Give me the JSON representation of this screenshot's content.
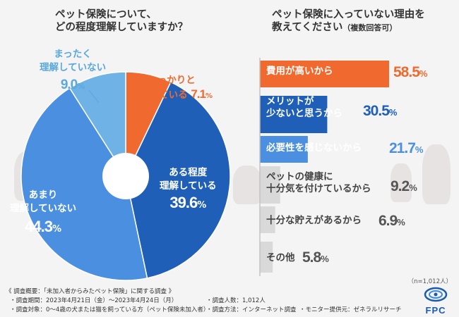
{
  "colors": {
    "orange": "#f06a2f",
    "dark_blue": "#1f5fb7",
    "mid_blue": "#4b8fe0",
    "light_blue": "#6fb3e6",
    "gray_bar": "#d9d9d9",
    "gray_bar_dark": "#c3c3c3",
    "logo_blue": "#1a5bb0"
  },
  "left_title": {
    "line1": "ペット保険について、",
    "line2": "どの程度理解していますか？"
  },
  "right_title": {
    "line1": "ペット保険に入っていない理由を",
    "line2": "教えてください",
    "note": "（複数回答可）"
  },
  "pie_labels": {
    "firm": {
      "line1": "しっかりと",
      "line2": "理解している",
      "pct": "7.1",
      "unit": "%"
    },
    "some": {
      "line1": "ある程度",
      "line2": "理解している",
      "pct": "39.6",
      "unit": "%"
    },
    "little": {
      "line1": "あまり",
      "line2": "理解していない",
      "pct": "44.3",
      "unit": "%"
    },
    "none": {
      "line1": "まったく",
      "line2": "理解していない",
      "pct": "9.0",
      "unit": "%"
    }
  },
  "bar_labels": [
    {
      "line1": "費用が高いから",
      "line2": "",
      "pct": "58.5",
      "unit": "%"
    },
    {
      "line1": "メリットが",
      "line2": "少ないと思うから",
      "pct": "30.5",
      "unit": "%"
    },
    {
      "line1": "必要性を感じないから",
      "line2": "",
      "pct": "21.7",
      "unit": "%"
    },
    {
      "line1": "ペットの健康に",
      "line2": "十分気を付けているから",
      "pct": "9.2",
      "unit": "%"
    },
    {
      "line1": "十分な貯えがあるから",
      "line2": "",
      "pct": "6.9",
      "unit": "%"
    },
    {
      "line1": "その他",
      "line2": "",
      "pct": "5.8",
      "unit": "%"
    }
  ],
  "n_label": "（n=1,012人）",
  "footer": {
    "line1": "《 調査概要：「未加入者からみたペット保険」に関する調査 》",
    "period": "・調査期間：2023年4月21日（金）～2023年4月24日（月）",
    "count": "・調査人数：1,012人",
    "target": "・調査対象：0～4歳の犬または猫を飼っている方（ペット保険未加入者）",
    "method": "・調査方法：インターネット調査",
    "provider": "・モニター提供元：ゼネラルリサーチ"
  },
  "logo_text": "FPC",
  "chart_data": [
    {
      "type": "pie",
      "title": "ペット保険について、どの程度理解していますか？",
      "categories": [
        "しっかりと理解している",
        "ある程度理解している",
        "あまり理解していない",
        "まったく理解していない"
      ],
      "values": [
        7.1,
        39.6,
        44.3,
        9.0
      ],
      "unit": "%"
    },
    {
      "type": "bar",
      "orientation": "horizontal",
      "title": "ペット保険に入っていない理由を教えてください（複数回答可）",
      "categories": [
        "費用が高いから",
        "メリットが少ないと思うから",
        "必要性を感じないから",
        "ペットの健康に十分気を付けているから",
        "十分な貯えがあるから",
        "その他"
      ],
      "values": [
        58.5,
        30.5,
        21.7,
        9.2,
        6.9,
        5.8
      ],
      "unit": "%",
      "xlim": [
        0,
        58.5
      ]
    }
  ]
}
